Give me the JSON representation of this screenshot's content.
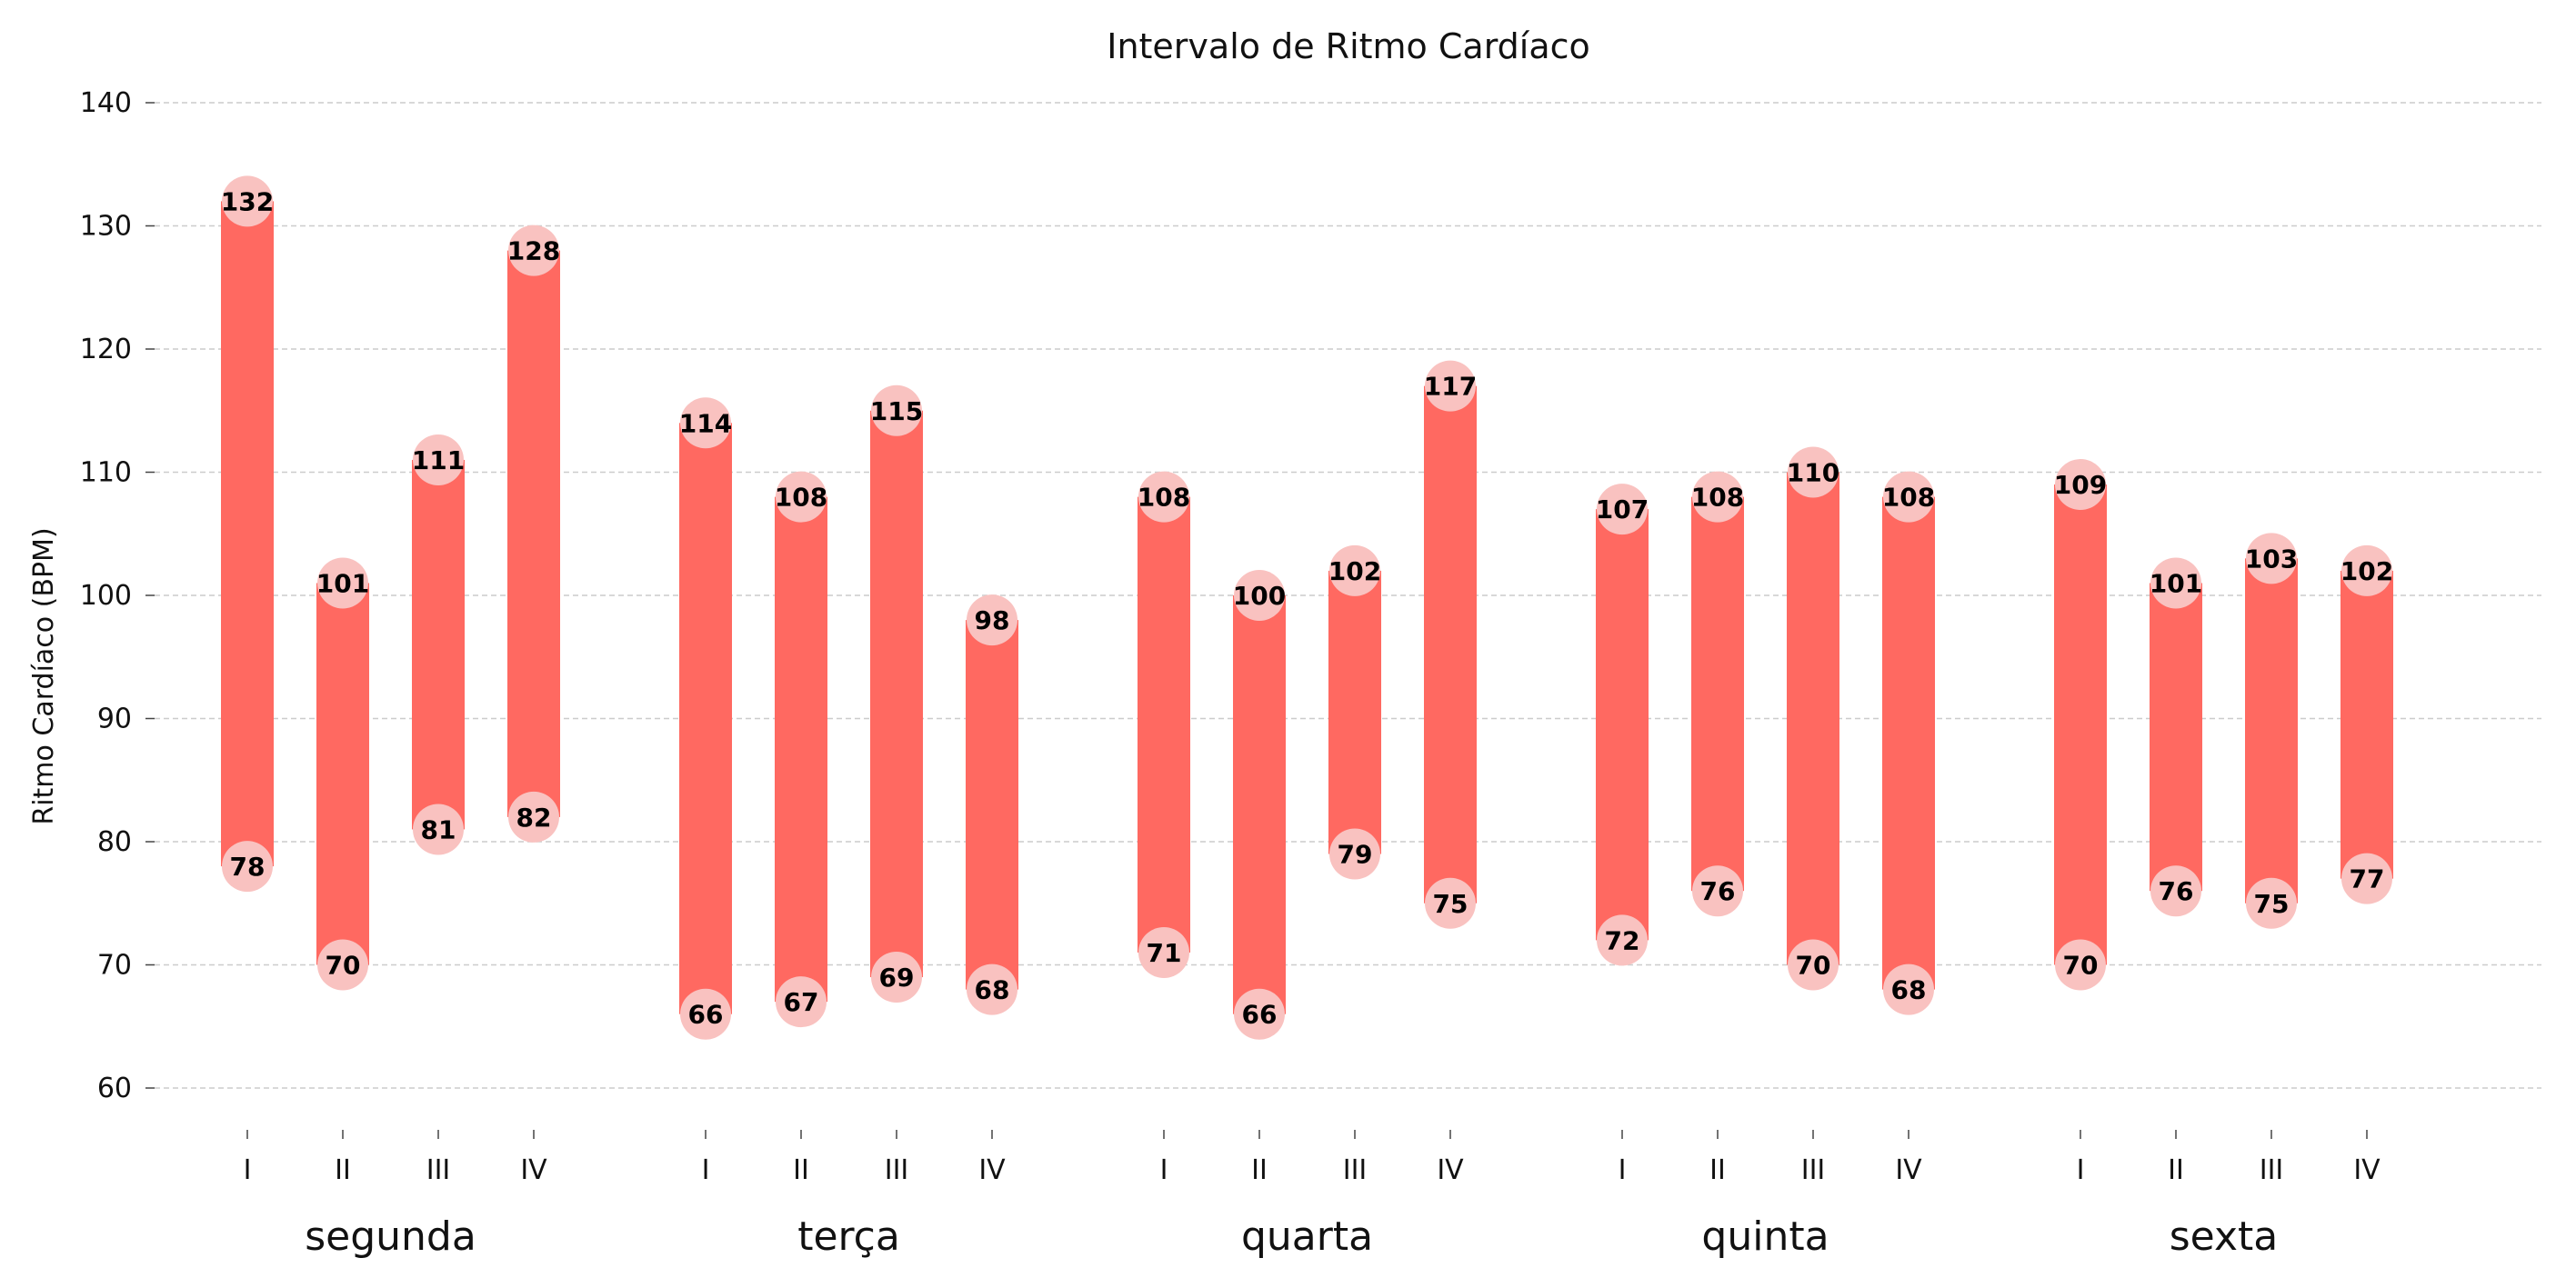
{
  "chart_data": {
    "type": "range_bar",
    "title": "Intervalo de Ritmo Cardíaco",
    "ylabel": "Ritmo Cardíaco (BPM)",
    "xlabel": "",
    "ylim": [
      60,
      140
    ],
    "yticks": [
      60,
      70,
      80,
      90,
      100,
      110,
      120,
      130,
      140
    ],
    "grid": "horizontal-dashed",
    "colors": {
      "bar": "#ff6961",
      "marker": "#f9c2c0",
      "grid": "#cccccc"
    },
    "groups": [
      {
        "name": "segunda",
        "items": [
          {
            "label": "I",
            "min": 78,
            "max": 132
          },
          {
            "label": "II",
            "min": 70,
            "max": 101
          },
          {
            "label": "III",
            "min": 81,
            "max": 111
          },
          {
            "label": "IV",
            "min": 82,
            "max": 128
          }
        ]
      },
      {
        "name": "terça",
        "items": [
          {
            "label": "I",
            "min": 66,
            "max": 114
          },
          {
            "label": "II",
            "min": 67,
            "max": 108
          },
          {
            "label": "III",
            "min": 69,
            "max": 115
          },
          {
            "label": "IV",
            "min": 68,
            "max": 98
          }
        ]
      },
      {
        "name": "quarta",
        "items": [
          {
            "label": "I",
            "min": 71,
            "max": 108
          },
          {
            "label": "II",
            "min": 66,
            "max": 100
          },
          {
            "label": "III",
            "min": 79,
            "max": 102
          },
          {
            "label": "IV",
            "min": 75,
            "max": 117
          }
        ]
      },
      {
        "name": "quinta",
        "items": [
          {
            "label": "I",
            "min": 72,
            "max": 107
          },
          {
            "label": "II",
            "min": 76,
            "max": 108
          },
          {
            "label": "III",
            "min": 70,
            "max": 110
          },
          {
            "label": "IV",
            "min": 68,
            "max": 108
          }
        ]
      },
      {
        "name": "sexta",
        "items": [
          {
            "label": "I",
            "min": 70,
            "max": 109
          },
          {
            "label": "II",
            "min": 76,
            "max": 101
          },
          {
            "label": "III",
            "min": 75,
            "max": 103
          },
          {
            "label": "IV",
            "min": 77,
            "max": 102
          }
        ]
      }
    ]
  }
}
